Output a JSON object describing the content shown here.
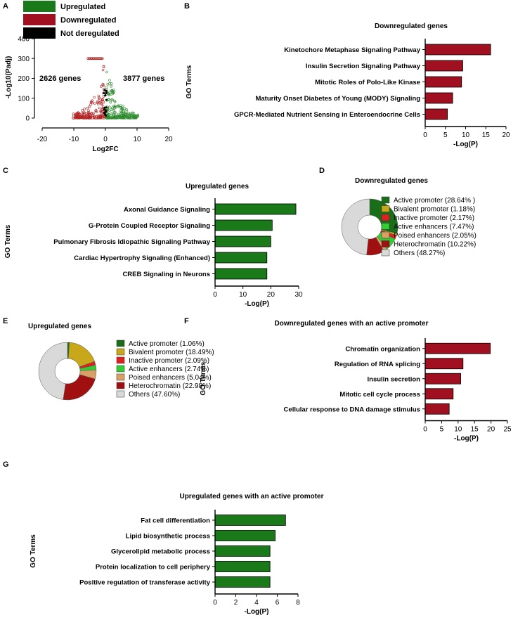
{
  "colors": {
    "up": "#1a7a1a",
    "down": "#a01020",
    "down_scatter": "#b22222",
    "up_scatter": "#2e8b2e",
    "neutral": "#000000",
    "pie": [
      "#1a6e1a",
      "#c8a81a",
      "#e02020",
      "#33cc33",
      "#d9a066",
      "#a01010",
      "#d9d9d9"
    ]
  },
  "panels": {
    "A": "A",
    "B": "B",
    "C": "C",
    "D": "D",
    "E": "E",
    "F": "F",
    "G": "G"
  },
  "chart_data": [
    {
      "id": "A",
      "type": "scatter",
      "xlabel": "Log2FC",
      "ylabel": "-Log10(Padj)",
      "xlim": [
        -20,
        20
      ],
      "ylim": [
        0,
        400
      ],
      "xticks": [
        -20,
        -10,
        0,
        10,
        20
      ],
      "yticks": [
        0,
        100,
        200,
        300,
        400
      ],
      "legend": [
        "Upregulated",
        "Downregulated",
        "Not deregulated"
      ],
      "annotations": {
        "down_count": "2626 genes",
        "up_count": "3877 genes"
      }
    },
    {
      "id": "B",
      "type": "bar",
      "orientation": "horizontal",
      "title": "Downregulated genes",
      "ylabel": "GO Terms",
      "xlabel": "-Log(P)",
      "xlim": [
        0,
        20
      ],
      "xticks": [
        0,
        5,
        10,
        15,
        20
      ],
      "categories": [
        "Kinetochore Metaphase Signaling Pathway",
        "Insulin Secretion Signaling Pathway",
        "Mitotic Roles of Polo-Like Kinase",
        "Maturity Onset Diabetes of Young (MODY) Signaling",
        "GPCR-Mediated Nutrient Sensing in Enteroendocrine Cells"
      ],
      "values": [
        16.2,
        9.3,
        9.0,
        6.8,
        5.5
      ]
    },
    {
      "id": "C",
      "type": "bar",
      "orientation": "horizontal",
      "title": "Upregulated genes",
      "ylabel": "GO Terms",
      "xlabel": "-Log(P)",
      "xlim": [
        0,
        30
      ],
      "xticks": [
        0,
        10,
        20,
        30
      ],
      "categories": [
        "Axonal Guidance Signaling",
        "G-Protein Coupled Receptor Signaling",
        "Pulmonary Fibrosis Idiopathic Signaling Pathway",
        "Cardiac Hypertrophy Signaling (Enhanced)",
        "CREB Signaling in Neurons"
      ],
      "values": [
        29.0,
        20.5,
        20.0,
        18.6,
        18.6
      ]
    },
    {
      "id": "D",
      "type": "pie",
      "title": "Downregulated genes",
      "labels": [
        "Active promoter (28.64% )",
        "Bivalent promoter (1.18%)",
        "Inactive promoter (2.17%)",
        "Active enhancers (7.47%)",
        "Poised enhancers (2.05%)",
        "Heterochromatin (10.22%)",
        "Others (48.27%)"
      ],
      "values": [
        28.64,
        1.18,
        2.17,
        7.47,
        2.05,
        10.22,
        48.27
      ]
    },
    {
      "id": "E",
      "type": "pie",
      "title": "Upregulated genes",
      "labels": [
        "Active promoter (1.06%)",
        "Bivalent promoter (18.49%)",
        "Inactive promoter (2.09%)",
        "Active enhancers (2.74%)",
        "Poised enhancers (5.04%)",
        "Heterochromatin (22.98%)",
        "Others (47.60%)"
      ],
      "values": [
        1.06,
        18.49,
        2.09,
        2.74,
        5.04,
        22.98,
        47.6
      ]
    },
    {
      "id": "F",
      "type": "bar",
      "orientation": "horizontal",
      "title": "Downregulated genes with an active promoter",
      "ylabel": "GO Terms",
      "xlabel": "-Log(P)",
      "xlim": [
        0,
        25
      ],
      "xticks": [
        0,
        5,
        10,
        15,
        20,
        25
      ],
      "categories": [
        "Chromatin organization",
        "Regulation of RNA splicing",
        "Insulin secretion",
        "Mitotic cell cycle process",
        "Cellular response to DNA damage stimulus"
      ],
      "values": [
        19.8,
        11.5,
        10.8,
        8.5,
        7.3
      ]
    },
    {
      "id": "G",
      "type": "bar",
      "orientation": "horizontal",
      "title": "Upregulated genes with an active promoter",
      "ylabel": "GO Terms",
      "xlabel": "-Log(P)",
      "xlim": [
        0,
        8
      ],
      "xticks": [
        0,
        2,
        4,
        6,
        8
      ],
      "categories": [
        "Fat cell differentiation",
        "Lipid biosynthetic process",
        "Glycerolipid metabolic process",
        "Protein localization to cell periphery",
        "Positive regulation of transferase activity"
      ],
      "values": [
        6.8,
        5.8,
        5.3,
        5.3,
        5.3
      ]
    }
  ]
}
